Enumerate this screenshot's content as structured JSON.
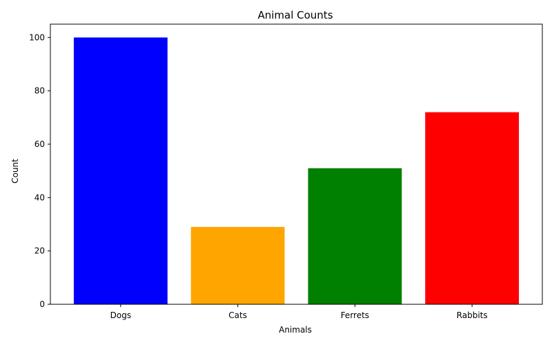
{
  "chart_data": {
    "type": "bar",
    "title": "Animal Counts",
    "xlabel": "Animals",
    "ylabel": "Count",
    "categories": [
      "Dogs",
      "Cats",
      "Ferrets",
      "Rabbits"
    ],
    "values": [
      100,
      29,
      51,
      72
    ],
    "colors": [
      "#0000ff",
      "#ffa500",
      "#008000",
      "#ff0000"
    ],
    "ylim": [
      0,
      105
    ],
    "yticks": [
      0,
      20,
      40,
      60,
      80,
      100
    ],
    "grid": false,
    "legend": "none"
  }
}
